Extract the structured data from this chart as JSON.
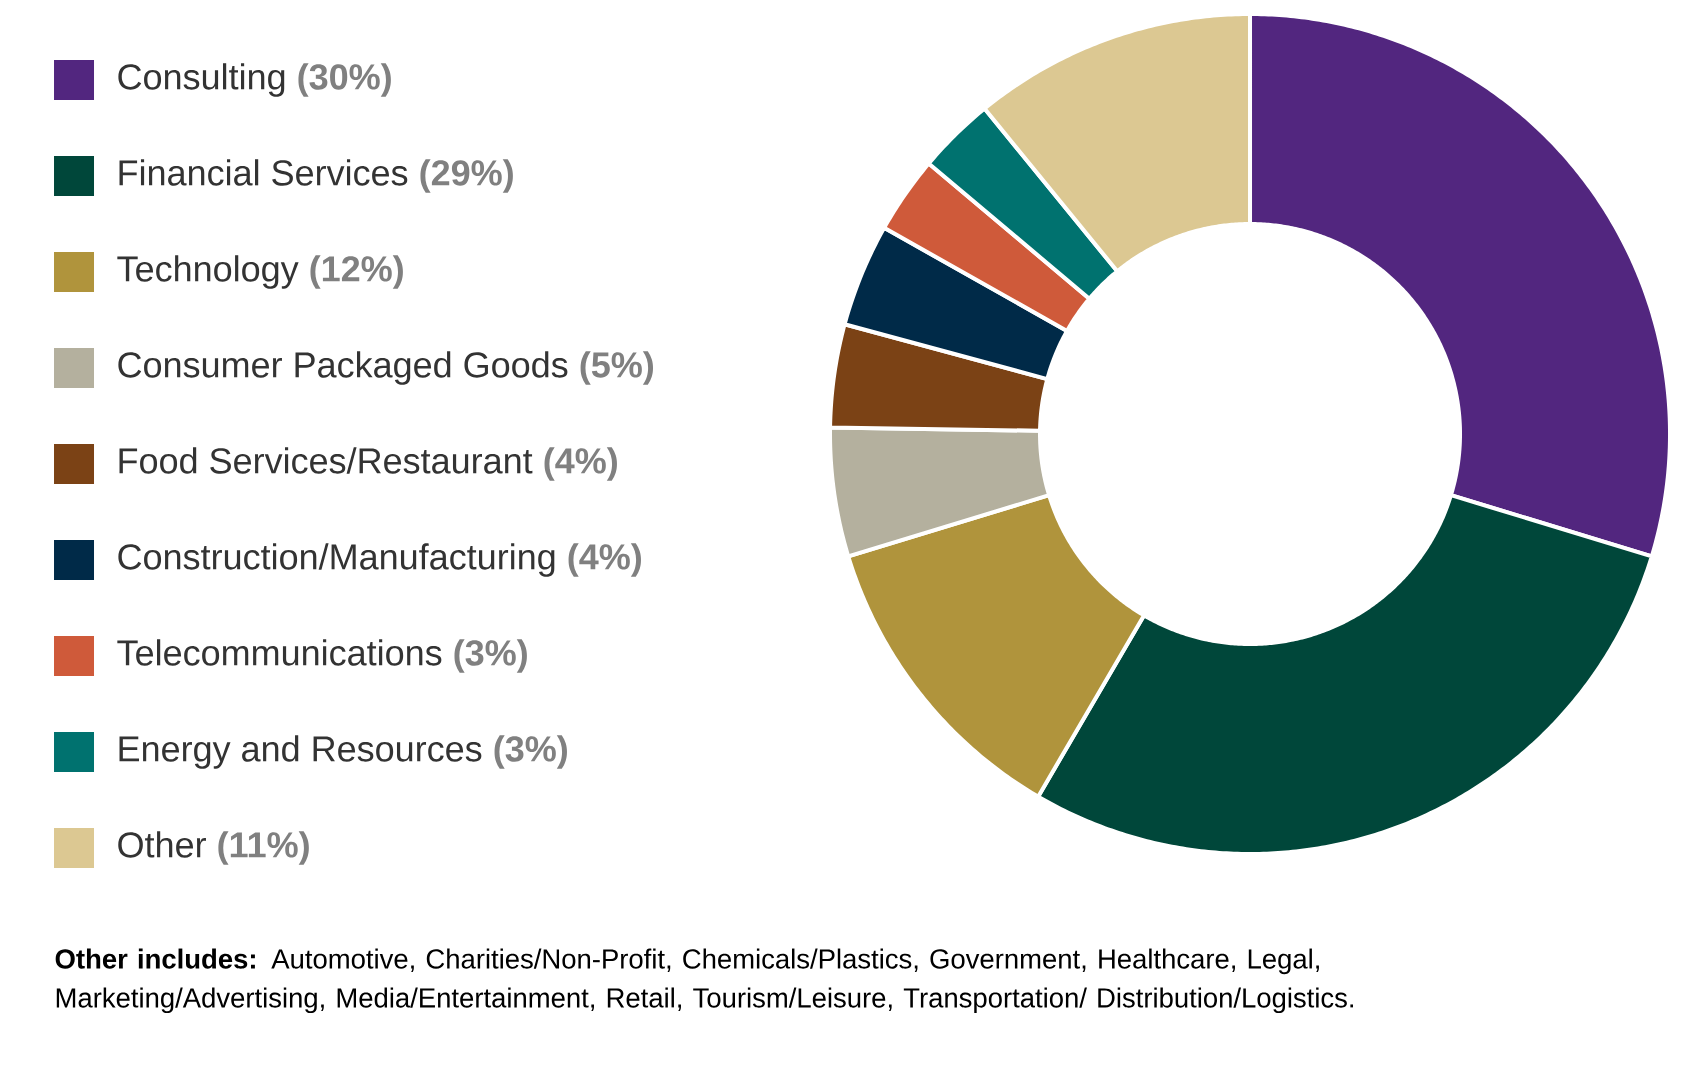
{
  "chart_data": {
    "type": "donut",
    "categories": [
      "Consulting",
      "Financial Services",
      "Technology",
      "Consumer Packaged Goods",
      "Food Services/Restaurant",
      "Construction/Manufacturing",
      "Telecommunications",
      "Energy and Resources",
      "Other"
    ],
    "values": [
      30,
      29,
      12,
      5,
      4,
      4,
      3,
      3,
      11
    ],
    "value_labels": [
      "(30%)",
      "(29%)",
      "(12%)",
      "(5%)",
      "(4%)",
      "(4%)",
      "(3%)",
      "(3%)",
      "(11%)"
    ],
    "colors": [
      "#52267f",
      "#00473a",
      "#b0943c",
      "#b4b09e",
      "#7b4215",
      "#002a48",
      "#cf5a3a",
      "#00726f",
      "#dcc892"
    ],
    "legend": "left",
    "annotations": [
      "**Other includes:** Automotive, Charities/Non-Profit, Chemicals/Plastics, Government, Healthcare, Legal, Marketing/Advertising, Media/Entertainment, Retail, Tourism/Leisure, Transportation/ Distribution/Logistics."
    ]
  }
}
